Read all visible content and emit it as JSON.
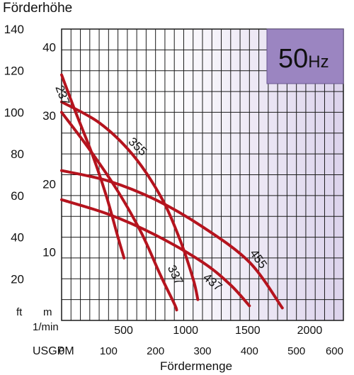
{
  "chart_data": {
    "type": "line",
    "title": "Förderhöhe",
    "badge": "50",
    "badge_unit": "Hz",
    "xlabel": "Fördermenge",
    "xunits": {
      "lmin": {
        "label": "1/min",
        "ticks": [
          500,
          1000,
          1500,
          2000
        ]
      },
      "usgpm": {
        "label": "USGPM",
        "ticks": [
          0,
          100,
          200,
          300,
          400,
          500,
          600
        ]
      }
    },
    "yunits": {
      "ft": {
        "label": "ft",
        "ticks": [
          20,
          40,
          60,
          80,
          100,
          120,
          140
        ],
        "lim": [
          0,
          140
        ]
      },
      "m": {
        "label": "m",
        "ticks": [
          10,
          20,
          30,
          40
        ]
      }
    },
    "xlim_usgpm": [
      0,
      600
    ],
    "grid": true,
    "series": [
      {
        "name": "237",
        "x": [
          0,
          30,
          65,
          95,
          120,
          133
        ],
        "y": [
          118,
          100,
          80,
          60,
          40,
          30
        ]
      },
      {
        "name": "337",
        "x": [
          0,
          60,
          120,
          170,
          210,
          240,
          245
        ],
        "y": [
          100,
          82,
          62,
          42,
          22,
          8,
          5
        ]
      },
      {
        "name": "355",
        "x": [
          0,
          80,
          150,
          210,
          250,
          280,
          290
        ],
        "y": [
          105,
          95,
          80,
          60,
          40,
          20,
          10
        ]
      },
      {
        "name": "437",
        "x": [
          0,
          100,
          200,
          300,
          360,
          400
        ],
        "y": [
          58,
          51,
          41,
          28,
          17,
          7
        ]
      },
      {
        "name": "455",
        "x": [
          0,
          100,
          200,
          300,
          400,
          470
        ],
        "y": [
          72,
          67,
          58,
          45,
          28,
          6
        ]
      }
    ],
    "colors": {
      "curve": "#b5141e",
      "grid": "#1a1a1a",
      "badge_fill": "#9b85c1",
      "plot_gradient_right": "#dcd3ec"
    }
  }
}
